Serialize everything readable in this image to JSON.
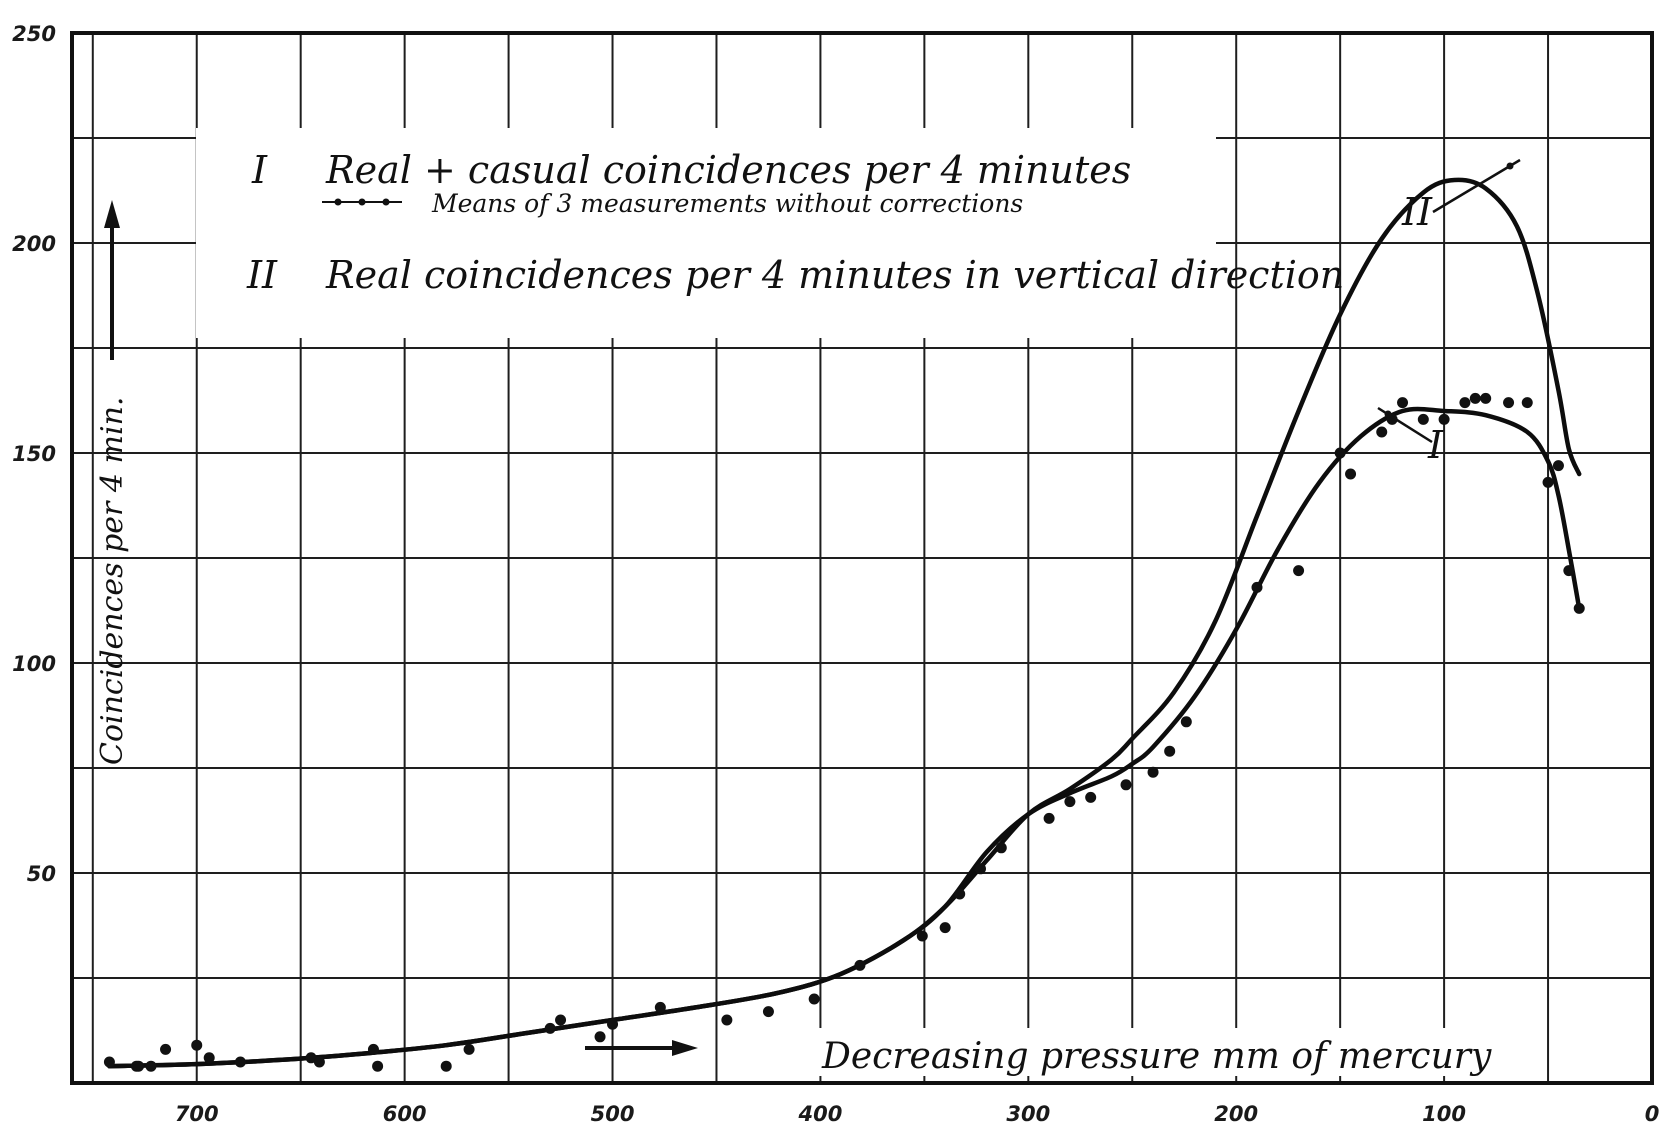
{
  "chart_data": {
    "type": "scatter",
    "title": "",
    "xlabel": "Decreasing pressure mm of mercury",
    "ylabel": "Coincidences per 4 min.",
    "xlim": [
      760,
      0
    ],
    "ylim": [
      0,
      250
    ],
    "x_ticks": [
      700,
      600,
      500,
      400,
      300,
      200,
      100,
      0
    ],
    "x_tick_labels": [
      "700",
      "600",
      "500",
      "400",
      "300",
      "200",
      "100",
      "0"
    ],
    "y_ticks": [
      50,
      100,
      150,
      200,
      250
    ],
    "y_tick_labels": [
      "50",
      "100",
      "150",
      "200",
      "250"
    ],
    "grid": true,
    "legend": [
      {
        "marker": "I",
        "text": "Real + casual coincidences per 4 minutes"
      },
      {
        "marker": "",
        "text": "Means of 3 measurements without corrections"
      },
      {
        "marker": "II",
        "text": "Real coincidences per 4 minutes in vertical direction"
      }
    ],
    "curve_labels": [
      "I",
      "II"
    ],
    "series": [
      {
        "name": "I",
        "style": "points",
        "x": [
          742,
          729,
          728,
          722,
          715,
          700,
          694,
          679,
          645,
          641,
          615,
          613,
          580,
          569,
          530,
          525,
          506,
          500,
          477,
          445,
          425,
          403,
          381,
          351,
          340,
          333,
          323,
          313,
          290,
          280,
          270,
          253,
          240,
          232,
          224,
          190,
          170,
          150,
          145,
          130,
          125,
          120,
          110,
          100,
          90,
          85,
          80,
          69,
          60,
          50,
          45,
          40,
          35
        ],
        "y": [
          5,
          4,
          4,
          4,
          8,
          9,
          6,
          5,
          6,
          5,
          8,
          4,
          4,
          8,
          13,
          15,
          11,
          14,
          18,
          15,
          17,
          20,
          28,
          35,
          37,
          45,
          51,
          56,
          63,
          67,
          68,
          71,
          74,
          79,
          86,
          118,
          122,
          150,
          145,
          155,
          158,
          162,
          158,
          158,
          162,
          163,
          163,
          162,
          162,
          143,
          147,
          122,
          113
        ]
      },
      {
        "name": "I",
        "style": "line",
        "x": [
          742,
          700,
          660,
          620,
          580,
          540,
          500,
          460,
          420,
          390,
          360,
          340,
          320,
          300,
          280,
          260,
          250,
          240,
          220,
          200,
          180,
          160,
          140,
          120,
          100,
          80,
          60,
          50,
          45,
          40,
          35
        ],
        "y": [
          4,
          4.5,
          5.5,
          7,
          9,
          12,
          15,
          18,
          21.5,
          26,
          34,
          42,
          55,
          64,
          69,
          73,
          76,
          80,
          92,
          108,
          127,
          143,
          154,
          160,
          160,
          159,
          155,
          148,
          140,
          127,
          113
        ]
      },
      {
        "name": "II",
        "style": "line",
        "x": [
          742,
          700,
          660,
          620,
          580,
          540,
          500,
          460,
          420,
          390,
          360,
          340,
          320,
          300,
          280,
          260,
          250,
          230,
          210,
          190,
          170,
          150,
          130,
          110,
          95,
          80,
          65,
          55,
          45,
          40,
          35
        ],
        "y": [
          4,
          4.5,
          5.5,
          7,
          9,
          12,
          15,
          18,
          21.5,
          26,
          34,
          42,
          53,
          64,
          70,
          77,
          82,
          93,
          110,
          135,
          160,
          183,
          201,
          212,
          215,
          213,
          204,
          188,
          165,
          151,
          145
        ]
      }
    ]
  }
}
